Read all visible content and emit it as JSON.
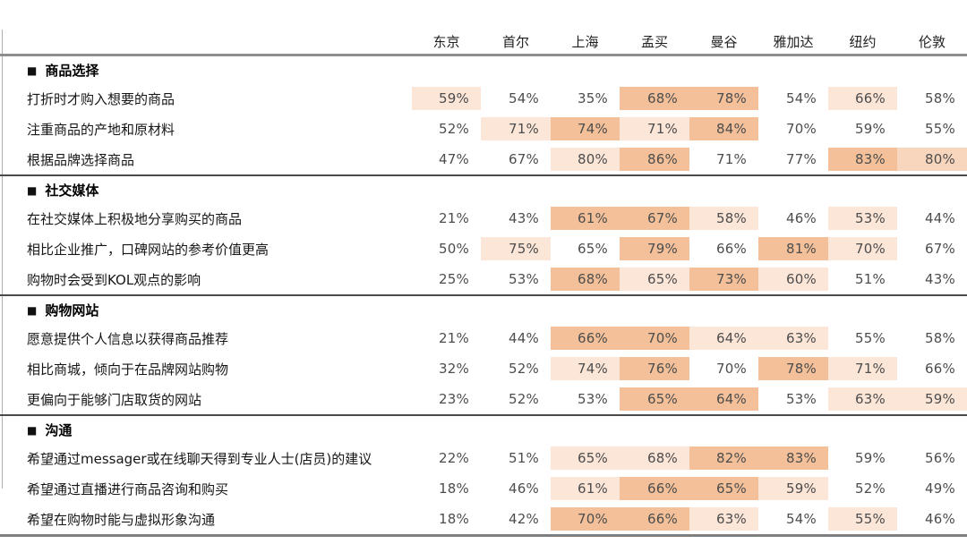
{
  "page": {
    "background": "#ffffff"
  },
  "colors": {
    "shade_levels": [
      "transparent",
      "#fce6d8",
      "#f8d5bd",
      "#f3c099"
    ],
    "section_divider": "#4a4a4a",
    "header_underline": "#8e8e8e",
    "bottom_rule": "#7f7f7f",
    "left_rule": "#b0b0b0",
    "value_text": "#4d4d4d",
    "label_text": "#161616"
  },
  "chart_data": {
    "type": "heatmap",
    "unit": "%",
    "section_marker": "■",
    "legend_note": "cell shading intensity 0=none 1=light 2=medium-light 3=medium (orange highlight of higher values)",
    "columns": [
      "东京",
      "首尔",
      "上海",
      "孟买",
      "曼谷",
      "雅加达",
      "纽约",
      "伦敦"
    ],
    "sections": [
      {
        "title": "商品选择",
        "rows": [
          {
            "label": "打折时才购入想要的商品",
            "values": [
              59,
              54,
              35,
              68,
              78,
              54,
              66,
              58
            ],
            "shade": [
              1,
              0,
              0,
              3,
              3,
              0,
              1,
              0
            ]
          },
          {
            "label": "注重商品的产地和原材料",
            "values": [
              52,
              71,
              74,
              71,
              84,
              70,
              59,
              55
            ],
            "shade": [
              0,
              1,
              3,
              1,
              3,
              0,
              0,
              0
            ]
          },
          {
            "label": "根据品牌选择商品",
            "values": [
              47,
              67,
              80,
              86,
              71,
              77,
              83,
              80
            ],
            "shade": [
              0,
              0,
              1,
              3,
              0,
              0,
              3,
              2
            ]
          }
        ]
      },
      {
        "title": "社交媒体",
        "rows": [
          {
            "label": "在社交媒体上积极地分享购买的商品",
            "values": [
              21,
              43,
              61,
              67,
              58,
              46,
              53,
              44
            ],
            "shade": [
              0,
              0,
              3,
              3,
              1,
              0,
              1,
              0
            ]
          },
          {
            "label": "相比企业推广，口碑网站的参考价值更高",
            "values": [
              50,
              75,
              65,
              79,
              66,
              81,
              70,
              67
            ],
            "shade": [
              0,
              1,
              0,
              3,
              0,
              3,
              1,
              0
            ]
          },
          {
            "label": "购物时会受到KOL观点的影响",
            "values": [
              25,
              53,
              68,
              65,
              73,
              60,
              51,
              43
            ],
            "shade": [
              0,
              0,
              3,
              1,
              3,
              1,
              0,
              0
            ]
          }
        ]
      },
      {
        "title": "购物网站",
        "rows": [
          {
            "label": "愿意提供个人信息以获得商品推荐",
            "values": [
              21,
              44,
              66,
              70,
              64,
              63,
              55,
              58
            ],
            "shade": [
              0,
              0,
              3,
              3,
              1,
              1,
              0,
              0
            ]
          },
          {
            "label": "相比商城，倾向于在品牌网站购物",
            "values": [
              32,
              52,
              74,
              76,
              70,
              78,
              71,
              66
            ],
            "shade": [
              0,
              0,
              1,
              3,
              0,
              3,
              1,
              0
            ]
          },
          {
            "label": "更偏向于能够门店取货的网站",
            "values": [
              23,
              52,
              53,
              65,
              64,
              53,
              63,
              59
            ],
            "shade": [
              0,
              0,
              0,
              3,
              3,
              0,
              1,
              1
            ]
          }
        ]
      },
      {
        "title": "沟通",
        "rows": [
          {
            "label": "希望通过messager或在线聊天得到专业人士(店员)的建议",
            "values": [
              22,
              51,
              65,
              68,
              82,
              83,
              59,
              56
            ],
            "shade": [
              0,
              0,
              1,
              1,
              3,
              3,
              0,
              0
            ]
          },
          {
            "label": "希望通过直播进行商品咨询和购买",
            "values": [
              18,
              46,
              61,
              66,
              65,
              59,
              52,
              49
            ],
            "shade": [
              0,
              0,
              1,
              3,
              3,
              1,
              0,
              0
            ]
          },
          {
            "label": "希望在购物时能与虚拟形象沟通",
            "values": [
              18,
              42,
              70,
              66,
              63,
              54,
              55,
              46
            ],
            "shade": [
              0,
              0,
              3,
              3,
              1,
              0,
              1,
              0
            ]
          }
        ]
      }
    ]
  }
}
